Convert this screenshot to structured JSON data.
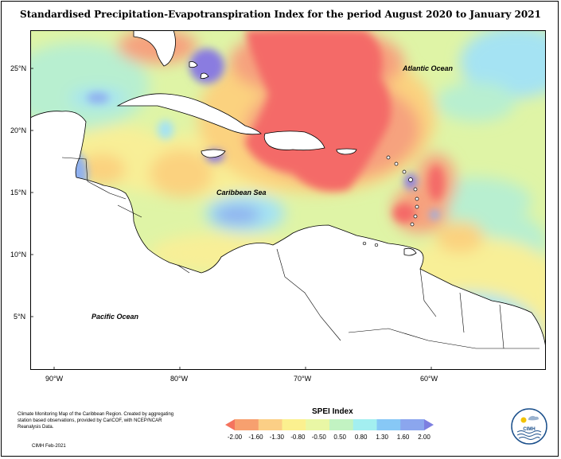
{
  "title": "Standardised Precipitation-Evapotranspiration Index for the period August 2020 to January 2021",
  "axes": {
    "lat_labels": [
      "25°N",
      "20°N",
      "15°N",
      "10°N",
      "5°N"
    ],
    "lon_labels": [
      "90°W",
      "80°W",
      "70°W",
      "60°W"
    ]
  },
  "labels": {
    "atlantic": "Atlantic Ocean",
    "caribbean": "Caribbean Sea",
    "pacific": "Pacific Ocean"
  },
  "legend": {
    "title": "SPEI Index",
    "ticks": [
      "-2.00",
      "-1.60",
      "-1.30",
      "-0.80",
      "-0.50",
      "0.50",
      "0.80",
      "1.30",
      "1.60",
      "2.00"
    ],
    "colors": [
      "#f4735e",
      "#f7a06f",
      "#fbcf86",
      "#fbf08f",
      "#e9f7a5",
      "#c2f3c2",
      "#a3eff0",
      "#87c8f6",
      "#8ba6ee",
      "#7d7fe0"
    ]
  },
  "credit": {
    "text": "Climate Monitoring Map of the Caribbean Region. Created by aggregating station based observations, provided by CariCOF, with NCEP/NCAR Reanalysis Data.",
    "date": "CIMH Feb-2021"
  },
  "logo": {
    "text": "CIMH"
  },
  "colors": {
    "very_dry": "#f46a68",
    "dry": "#f6a27e",
    "mod_dry": "#fbd27f",
    "slight_dry": "#f8ef97",
    "normal": "#dff4a6",
    "slight_wet": "#b8efd0",
    "wet": "#a5e3f3",
    "very_wet": "#8fb0ef",
    "extreme_wet": "#8a7be0"
  }
}
